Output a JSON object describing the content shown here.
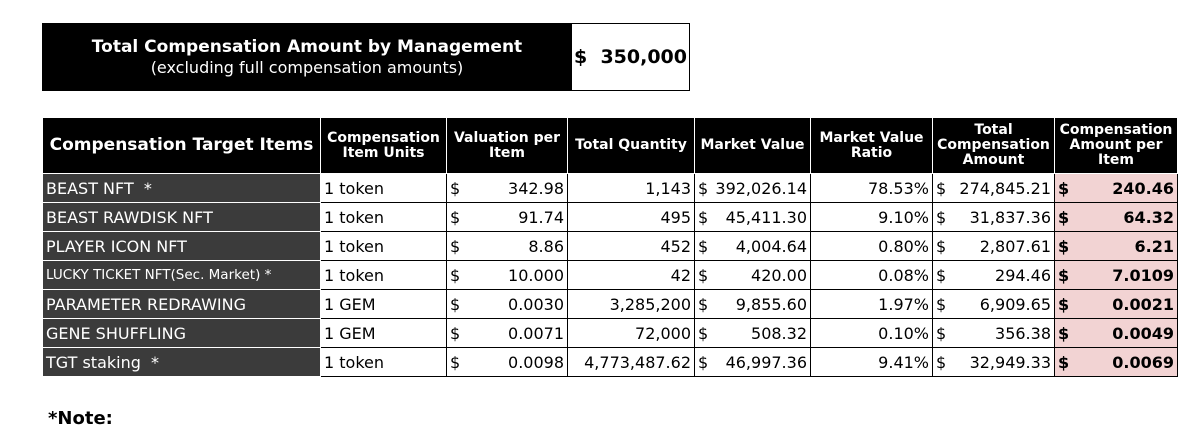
{
  "summary": {
    "title": "Total Compensation Amount by Management",
    "subtitle": "(excluding full compensation amounts)",
    "value": "$  350,000"
  },
  "table": {
    "headers": {
      "item": "Compensation Target Items",
      "units": "Compensation Item Units",
      "valuation": "Valuation per Item",
      "quantity": "Total Quantity",
      "market_value": "Market Value",
      "ratio": "Market Value Ratio",
      "total_comp": "Total Compensation Amount",
      "comp_per_item": "Compensation Amount per Item"
    },
    "rows": [
      {
        "name": "BEAST NFT  *",
        "units": "1 token",
        "valuation": "342.98",
        "quantity": "1,143",
        "market_value": "392,026.14",
        "ratio": "78.53%",
        "total_comp": "274,845.21",
        "comp_per_item": "240.46"
      },
      {
        "name": "BEAST RAWDISK NFT",
        "units": "1 token",
        "valuation": "91.74",
        "quantity": "495",
        "market_value": "45,411.30",
        "ratio": "9.10%",
        "total_comp": "31,837.36",
        "comp_per_item": "64.32"
      },
      {
        "name": "PLAYER ICON NFT",
        "units": "1 token",
        "valuation": "8.86",
        "quantity": "452",
        "market_value": "4,004.64",
        "ratio": "0.80%",
        "total_comp": "2,807.61",
        "comp_per_item": "6.21"
      },
      {
        "name": "LUCKY TICKET NFT(Sec. Market) *",
        "units": "1 token",
        "valuation": "10.000",
        "quantity": "42",
        "market_value": "420.00",
        "ratio": "0.08%",
        "total_comp": "294.46",
        "comp_per_item": "7.0109"
      },
      {
        "name": "PARAMETER REDRAWING",
        "units": "1 GEM",
        "valuation": "0.0030",
        "quantity": "3,285,200",
        "market_value": "9,855.60",
        "ratio": "1.97%",
        "total_comp": "6,909.65",
        "comp_per_item": "0.0021"
      },
      {
        "name": "GENE SHUFFLING",
        "units": "1 GEM",
        "valuation": "0.0071",
        "quantity": "72,000",
        "market_value": "508.32",
        "ratio": "0.10%",
        "total_comp": "356.38",
        "comp_per_item": "0.0049"
      },
      {
        "name": "TGT staking  *",
        "units": "1 token",
        "valuation": "0.0098",
        "quantity": "4,773,487.62",
        "market_value": "46,997.36",
        "ratio": "9.41%",
        "total_comp": "32,949.33",
        "comp_per_item": "0.0069"
      }
    ]
  },
  "currency_symbol": "$",
  "note": "*Note:"
}
